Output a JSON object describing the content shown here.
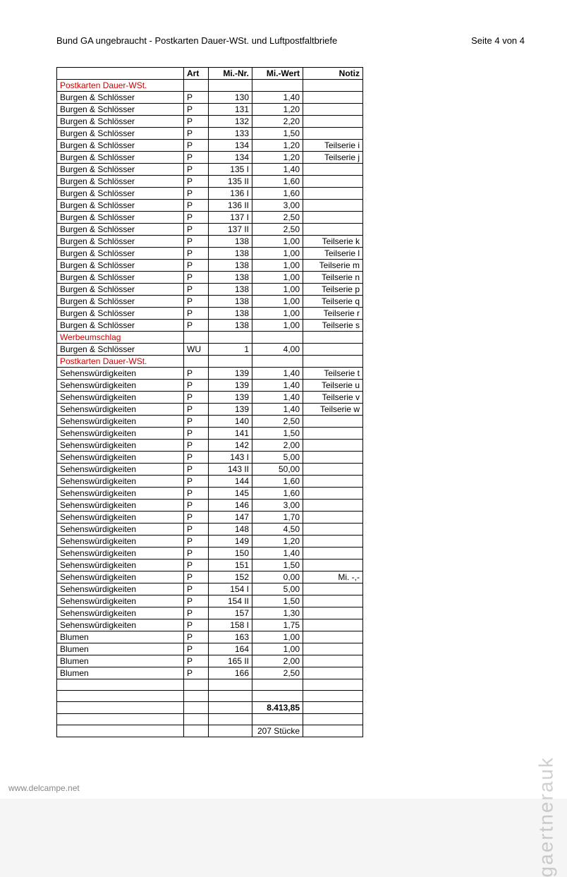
{
  "header": {
    "title": "Bund GA ungebraucht - Postkarten Dauer-WSt. und Luftpostfaltbriefe",
    "pageinfo": "Seite 4 von 4"
  },
  "columns": [
    "",
    "Art",
    "Mi.-Nr.",
    "Mi.-Wert",
    "Notiz"
  ],
  "rows": [
    {
      "name": "Postkarten Dauer-WSt.",
      "art": "",
      "nr": "",
      "wert": "",
      "notiz": "",
      "section": true
    },
    {
      "name": "Burgen & Schlösser",
      "art": "P",
      "nr": "130",
      "wert": "1,40",
      "notiz": ""
    },
    {
      "name": "Burgen & Schlösser",
      "art": "P",
      "nr": "131",
      "wert": "1,20",
      "notiz": ""
    },
    {
      "name": "Burgen & Schlösser",
      "art": "P",
      "nr": "132",
      "wert": "2,20",
      "notiz": ""
    },
    {
      "name": "Burgen & Schlösser",
      "art": "P",
      "nr": "133",
      "wert": "1,50",
      "notiz": ""
    },
    {
      "name": "Burgen & Schlösser",
      "art": "P",
      "nr": "134",
      "wert": "1,20",
      "notiz": "Teilserie i"
    },
    {
      "name": "Burgen & Schlösser",
      "art": "P",
      "nr": "134",
      "wert": "1,20",
      "notiz": "Teilserie j"
    },
    {
      "name": "Burgen & Schlösser",
      "art": "P",
      "nr": "135 I",
      "wert": "1,40",
      "notiz": ""
    },
    {
      "name": "Burgen & Schlösser",
      "art": "P",
      "nr": "135 II",
      "wert": "1,60",
      "notiz": ""
    },
    {
      "name": "Burgen & Schlösser",
      "art": "P",
      "nr": "136 I",
      "wert": "1,60",
      "notiz": ""
    },
    {
      "name": "Burgen & Schlösser",
      "art": "P",
      "nr": "136 II",
      "wert": "3,00",
      "notiz": ""
    },
    {
      "name": "Burgen & Schlösser",
      "art": "P",
      "nr": "137 I",
      "wert": "2,50",
      "notiz": ""
    },
    {
      "name": "Burgen & Schlösser",
      "art": "P",
      "nr": "137 II",
      "wert": "2,50",
      "notiz": ""
    },
    {
      "name": "Burgen & Schlösser",
      "art": "P",
      "nr": "138",
      "wert": "1,00",
      "notiz": "Teilserie k"
    },
    {
      "name": "Burgen & Schlösser",
      "art": "P",
      "nr": "138",
      "wert": "1,00",
      "notiz": "Teilserie l"
    },
    {
      "name": "Burgen & Schlösser",
      "art": "P",
      "nr": "138",
      "wert": "1,00",
      "notiz": "Teilserie m"
    },
    {
      "name": "Burgen & Schlösser",
      "art": "P",
      "nr": "138",
      "wert": "1,00",
      "notiz": "Teilserie n"
    },
    {
      "name": "Burgen & Schlösser",
      "art": "P",
      "nr": "138",
      "wert": "1,00",
      "notiz": "Teilserie p"
    },
    {
      "name": "Burgen & Schlösser",
      "art": "P",
      "nr": "138",
      "wert": "1,00",
      "notiz": "Teilserie q"
    },
    {
      "name": "Burgen & Schlösser",
      "art": "P",
      "nr": "138",
      "wert": "1,00",
      "notiz": "Teilserie r"
    },
    {
      "name": "Burgen & Schlösser",
      "art": "P",
      "nr": "138",
      "wert": "1,00",
      "notiz": "Teilserie s"
    },
    {
      "name": "Werbeumschlag",
      "art": "",
      "nr": "",
      "wert": "",
      "notiz": "",
      "section": true
    },
    {
      "name": "Burgen & Schlösser",
      "art": "WU",
      "nr": "1",
      "wert": "4,00",
      "notiz": ""
    },
    {
      "name": "Postkarten Dauer-WSt.",
      "art": "",
      "nr": "",
      "wert": "",
      "notiz": "",
      "section": true
    },
    {
      "name": "Sehenswürdigkeiten",
      "art": "P",
      "nr": "139",
      "wert": "1,40",
      "notiz": "Teilserie t"
    },
    {
      "name": "Sehenswürdigkeiten",
      "art": "P",
      "nr": "139",
      "wert": "1,40",
      "notiz": "Teilserie u"
    },
    {
      "name": "Sehenswürdigkeiten",
      "art": "P",
      "nr": "139",
      "wert": "1,40",
      "notiz": "Teilserie v"
    },
    {
      "name": "Sehenswürdigkeiten",
      "art": "P",
      "nr": "139",
      "wert": "1,40",
      "notiz": "Teilserie w"
    },
    {
      "name": "Sehenswürdigkeiten",
      "art": "P",
      "nr": "140",
      "wert": "2,50",
      "notiz": ""
    },
    {
      "name": "Sehenswürdigkeiten",
      "art": "P",
      "nr": "141",
      "wert": "1,50",
      "notiz": ""
    },
    {
      "name": "Sehenswürdigkeiten",
      "art": "P",
      "nr": "142",
      "wert": "2,00",
      "notiz": ""
    },
    {
      "name": "Sehenswürdigkeiten",
      "art": "P",
      "nr": "143 I",
      "wert": "5,00",
      "notiz": ""
    },
    {
      "name": "Sehenswürdigkeiten",
      "art": "P",
      "nr": "143 II",
      "wert": "50,00",
      "notiz": ""
    },
    {
      "name": "Sehenswürdigkeiten",
      "art": "P",
      "nr": "144",
      "wert": "1,60",
      "notiz": ""
    },
    {
      "name": "Sehenswürdigkeiten",
      "art": "P",
      "nr": "145",
      "wert": "1,60",
      "notiz": ""
    },
    {
      "name": "Sehenswürdigkeiten",
      "art": "P",
      "nr": "146",
      "wert": "3,00",
      "notiz": ""
    },
    {
      "name": "Sehenswürdigkeiten",
      "art": "P",
      "nr": "147",
      "wert": "1,70",
      "notiz": ""
    },
    {
      "name": "Sehenswürdigkeiten",
      "art": "P",
      "nr": "148",
      "wert": "4,50",
      "notiz": ""
    },
    {
      "name": "Sehenswürdigkeiten",
      "art": "P",
      "nr": "149",
      "wert": "1,20",
      "notiz": ""
    },
    {
      "name": "Sehenswürdigkeiten",
      "art": "P",
      "nr": "150",
      "wert": "1,40",
      "notiz": ""
    },
    {
      "name": "Sehenswürdigkeiten",
      "art": "P",
      "nr": "151",
      "wert": "1,50",
      "notiz": ""
    },
    {
      "name": "Sehenswürdigkeiten",
      "art": "P",
      "nr": "152",
      "wert": "0,00",
      "notiz": "Mi. -,-"
    },
    {
      "name": "Sehenswürdigkeiten",
      "art": "P",
      "nr": "154 I",
      "wert": "5,00",
      "notiz": ""
    },
    {
      "name": "Sehenswürdigkeiten",
      "art": "P",
      "nr": "154 II",
      "wert": "1,50",
      "notiz": ""
    },
    {
      "name": "Sehenswürdigkeiten",
      "art": "P",
      "nr": "157",
      "wert": "1,30",
      "notiz": ""
    },
    {
      "name": "Sehenswürdigkeiten",
      "art": "P",
      "nr": "158 I",
      "wert": "1,75",
      "notiz": ""
    },
    {
      "name": "Blumen",
      "art": "P",
      "nr": "163",
      "wert": "1,00",
      "notiz": ""
    },
    {
      "name": "Blumen",
      "art": "P",
      "nr": "164",
      "wert": "1,00",
      "notiz": ""
    },
    {
      "name": "Blumen",
      "art": "P",
      "nr": "165 II",
      "wert": "2,00",
      "notiz": ""
    },
    {
      "name": "Blumen",
      "art": "P",
      "nr": "166",
      "wert": "2,50",
      "notiz": ""
    },
    {
      "name": "",
      "art": "",
      "nr": "",
      "wert": "",
      "notiz": ""
    },
    {
      "name": "",
      "art": "",
      "nr": "",
      "wert": "",
      "notiz": ""
    },
    {
      "name": "",
      "art": "",
      "nr": "",
      "wert": "8.413,85",
      "notiz": "",
      "bold": true
    },
    {
      "name": "",
      "art": "",
      "nr": "",
      "wert": "",
      "notiz": ""
    },
    {
      "name": "",
      "art": "",
      "nr": "",
      "wert": "207 Stücke",
      "notiz": ""
    }
  ],
  "footer": "www.delcampe.net",
  "watermark": "gaertnerauk"
}
